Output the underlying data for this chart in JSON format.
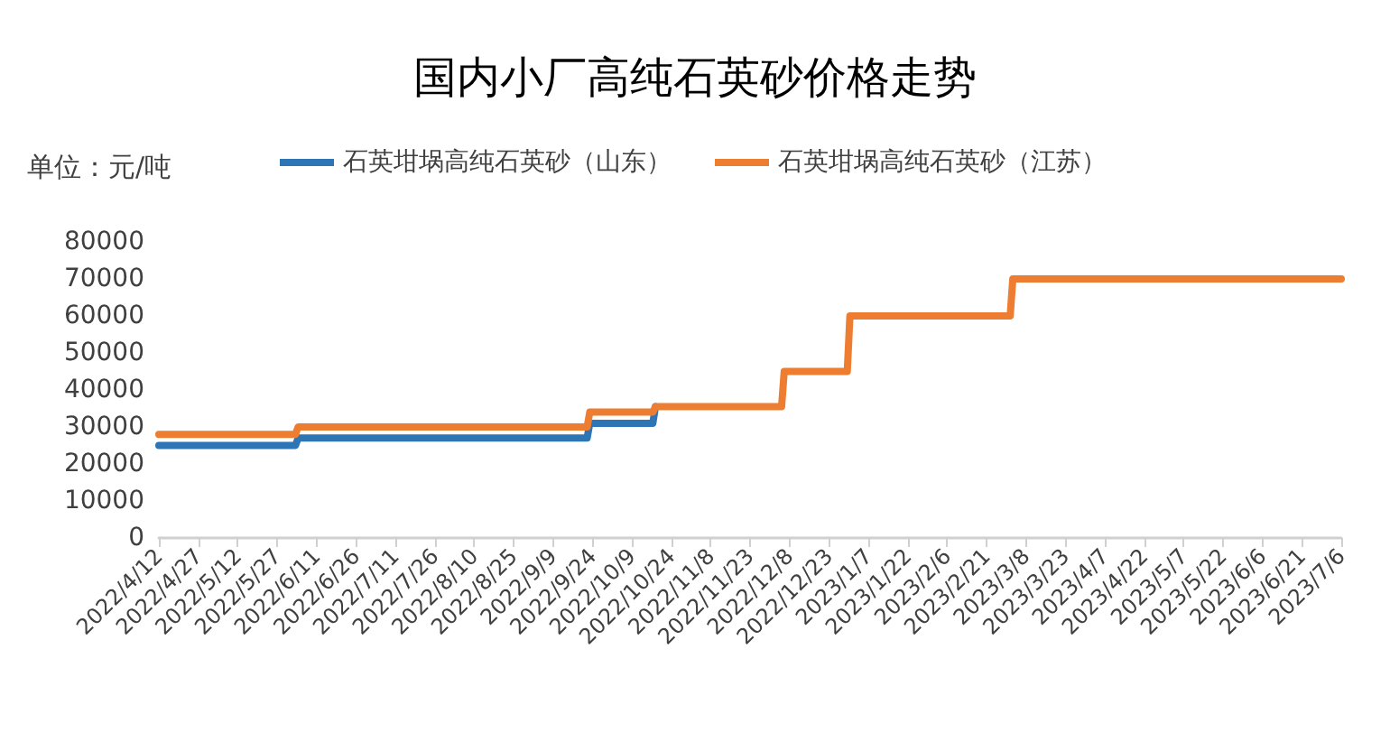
{
  "chart_data": {
    "type": "line",
    "title": "国内小厂高纯石英砂价格走势",
    "ylabel": "单位：元/吨",
    "series": [
      {
        "name": "石英坩埚高纯石英砂（山东）",
        "color": "#2e75b6",
        "x": [
          "2022-04-12",
          "2022-06-03",
          "2022-06-04",
          "2022-09-22",
          "2022-09-23",
          "2022-10-17",
          "2022-10-18"
        ],
        "values": [
          25000,
          25000,
          27000,
          27000,
          31000,
          31000,
          35500
        ]
      },
      {
        "name": "石英坩埚高纯石英砂（江苏）",
        "color": "#ed7d31",
        "x": [
          "2022-04-12",
          "2022-06-03",
          "2022-06-04",
          "2022-09-22",
          "2022-09-23",
          "2022-10-17",
          "2022-10-18",
          "2022-12-05",
          "2022-12-06",
          "2022-12-30",
          "2022-12-31",
          "2023-03-02",
          "2023-03-03",
          "2023-07-06"
        ],
        "values": [
          28000,
          28000,
          30000,
          30000,
          34000,
          34000,
          35500,
          35500,
          45000,
          45000,
          60000,
          60000,
          70000,
          70000
        ]
      }
    ],
    "xlim": [
      "2022-04-12",
      "2023-07-06"
    ],
    "xticks": [
      {
        "value": "2022-04-12",
        "label": "2022/4/12"
      },
      {
        "value": "2022-04-27",
        "label": "2022/4/27"
      },
      {
        "value": "2022-05-12",
        "label": "2022/5/12"
      },
      {
        "value": "2022-05-27",
        "label": "2022/5/27"
      },
      {
        "value": "2022-06-11",
        "label": "2022/6/11"
      },
      {
        "value": "2022-06-26",
        "label": "2022/6/26"
      },
      {
        "value": "2022-07-11",
        "label": "2022/7/11"
      },
      {
        "value": "2022-07-26",
        "label": "2022/7/26"
      },
      {
        "value": "2022-08-10",
        "label": "2022/8/10"
      },
      {
        "value": "2022-08-25",
        "label": "2022/8/25"
      },
      {
        "value": "2022-09-09",
        "label": "2022/9/9"
      },
      {
        "value": "2022-09-24",
        "label": "2022/9/24"
      },
      {
        "value": "2022-10-09",
        "label": "2022/10/9"
      },
      {
        "value": "2022-10-24",
        "label": "2022/10/24"
      },
      {
        "value": "2022-11-08",
        "label": "2022/11/8"
      },
      {
        "value": "2022-11-23",
        "label": "2022/11/23"
      },
      {
        "value": "2022-12-08",
        "label": "2022/12/8"
      },
      {
        "value": "2022-12-23",
        "label": "2022/12/23"
      },
      {
        "value": "2023-01-07",
        "label": "2023/1/7"
      },
      {
        "value": "2023-01-22",
        "label": "2023/1/22"
      },
      {
        "value": "2023-02-06",
        "label": "2023/2/6"
      },
      {
        "value": "2023-02-21",
        "label": "2023/2/21"
      },
      {
        "value": "2023-03-08",
        "label": "2023/3/8"
      },
      {
        "value": "2023-03-23",
        "label": "2023/3/23"
      },
      {
        "value": "2023-04-07",
        "label": "2023/4/7"
      },
      {
        "value": "2023-04-22",
        "label": "2023/4/22"
      },
      {
        "value": "2023-05-07",
        "label": "2023/5/7"
      },
      {
        "value": "2023-05-22",
        "label": "2023/5/22"
      },
      {
        "value": "2023-06-06",
        "label": "2023/6/6"
      },
      {
        "value": "2023-06-21",
        "label": "2023/6/21"
      },
      {
        "value": "2023-07-06",
        "label": "2023/7/6"
      }
    ],
    "ylim": [
      0,
      80000
    ],
    "yticks": [
      0,
      10000,
      20000,
      30000,
      40000,
      50000,
      60000,
      70000,
      80000
    ],
    "grid": false,
    "legend": "top",
    "marker": "none",
    "line_style": "solid"
  }
}
